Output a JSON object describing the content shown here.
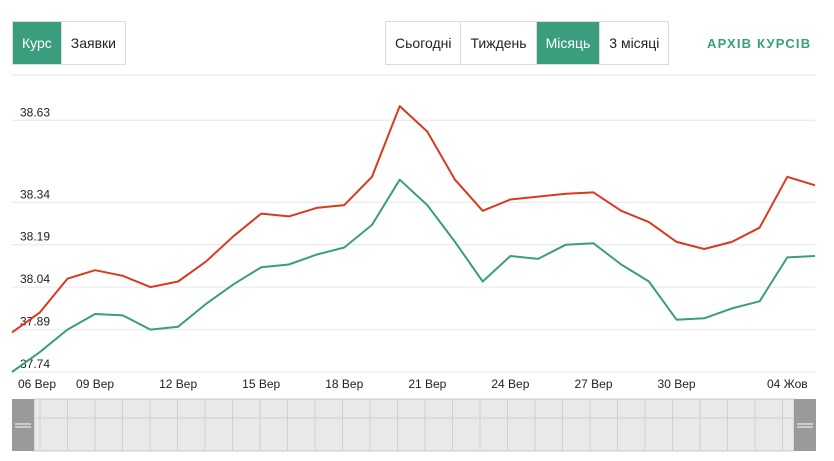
{
  "mode_tabs": [
    {
      "label": "Курс",
      "active": true
    },
    {
      "label": "Заявки",
      "active": false
    }
  ],
  "period_tabs": [
    {
      "label": "Сьогодні",
      "active": false
    },
    {
      "label": "Тиждень",
      "active": false
    },
    {
      "label": "Місяць",
      "active": true
    },
    {
      "label": "3 місяці",
      "active": false
    }
  ],
  "archive_link": "АРХІВ КУРСІВ",
  "colors": {
    "accent": "#3a9e7e",
    "sell": "#d93a1e",
    "buy": "#3a9e7e"
  },
  "chart_data": {
    "type": "line",
    "title": "",
    "xlabel": "",
    "ylabel": "",
    "ylim": [
      37.74,
      38.79
    ],
    "yticks": [
      "37.74",
      "37.89",
      "38.04",
      "38.19",
      "38.34",
      "38.63"
    ],
    "x": [
      "06 Вер",
      "07 Вер",
      "08 Вер",
      "09 Вер",
      "10 Вер",
      "11 Вер",
      "12 Вер",
      "13 Вер",
      "14 Вер",
      "15 Вер",
      "16 Вер",
      "17 Вер",
      "18 Вер",
      "19 Вер",
      "20 Вер",
      "21 Вер",
      "22 Вер",
      "23 Вер",
      "24 Вер",
      "25 Вер",
      "26 Вер",
      "27 Вер",
      "28 Вер",
      "29 Вер",
      "30 Вер",
      "01 Жов",
      "02 Жов",
      "03 Жов",
      "04 Жов",
      "05 Жов"
    ],
    "xtick_labels": [
      "06 Вер",
      "09 Вер",
      "12 Вер",
      "15 Вер",
      "18 Вер",
      "21 Вер",
      "24 Вер",
      "27 Вер",
      "30 Вер",
      "04 Жов"
    ],
    "grid": true,
    "series": [
      {
        "values": [
          37.88,
          37.95,
          38.07,
          38.1,
          38.08,
          38.04,
          38.06,
          38.13,
          38.22,
          38.3,
          38.29,
          38.32,
          38.33,
          38.43,
          38.68,
          38.59,
          38.42,
          38.31,
          38.35,
          38.36,
          38.37,
          38.375,
          38.31,
          38.27,
          38.2,
          38.175,
          38.2,
          38.25,
          38.43,
          38.4
        ]
      },
      {
        "values": [
          37.74,
          37.81,
          37.89,
          37.945,
          37.94,
          37.89,
          37.9,
          37.98,
          38.05,
          38.11,
          38.12,
          38.155,
          38.18,
          38.26,
          38.42,
          38.33,
          38.2,
          38.06,
          38.15,
          38.14,
          38.19,
          38.195,
          38.12,
          38.06,
          37.925,
          37.93,
          37.965,
          37.99,
          38.145,
          38.15
        ]
      }
    ]
  }
}
